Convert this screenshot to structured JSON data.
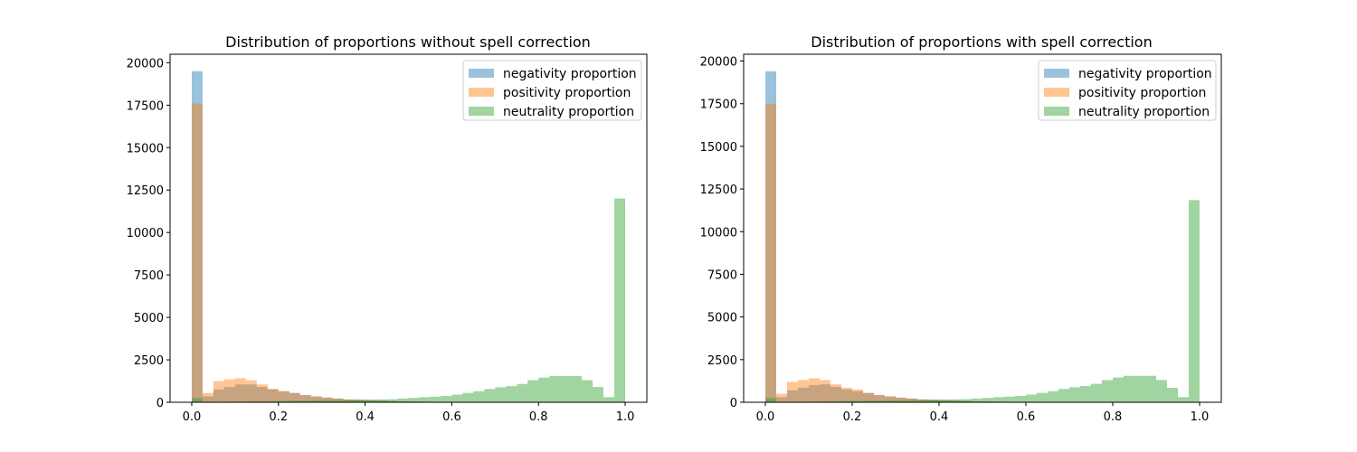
{
  "chart_data": [
    {
      "type": "histogram",
      "title": "Distribution of proportions without spell correction",
      "xlabel": "",
      "ylabel": "",
      "xlim": [
        -0.05,
        1.05
      ],
      "ylim": [
        0,
        20500
      ],
      "xticks": [
        "0.0",
        "0.2",
        "0.4",
        "0.6",
        "0.8",
        "1.0"
      ],
      "yticks": [
        "0",
        "2500",
        "5000",
        "7500",
        "10000",
        "12500",
        "15000",
        "17500",
        "20000"
      ],
      "bins": 40,
      "bin_range": [
        0,
        1
      ],
      "legend_position": "top-right",
      "series": [
        {
          "name": "negativity proportion",
          "color": "#1f77b4",
          "values": [
            19500,
            350,
            750,
            900,
            1050,
            1050,
            900,
            750,
            650,
            550,
            420,
            340,
            270,
            220,
            170,
            150,
            120,
            100,
            80,
            60,
            50,
            40,
            30,
            20,
            15,
            10,
            8,
            5,
            4,
            3,
            2,
            1,
            1,
            0,
            0,
            0,
            0,
            0,
            0,
            0
          ]
        },
        {
          "name": "positivity proportion",
          "color": "#ff7f0e",
          "values": [
            17600,
            550,
            1250,
            1350,
            1420,
            1300,
            1050,
            800,
            650,
            550,
            420,
            350,
            280,
            220,
            160,
            150,
            120,
            100,
            80,
            60,
            50,
            40,
            30,
            20,
            15,
            10,
            8,
            5,
            4,
            3,
            2,
            1,
            1,
            0,
            0,
            0,
            0,
            0,
            0,
            0
          ]
        },
        {
          "name": "neutrality proportion",
          "color": "#2ca02c",
          "values": [
            250,
            30,
            20,
            30,
            40,
            50,
            60,
            70,
            80,
            90,
            100,
            110,
            120,
            130,
            140,
            150,
            160,
            170,
            180,
            220,
            260,
            300,
            330,
            370,
            450,
            550,
            650,
            780,
            880,
            950,
            1080,
            1300,
            1450,
            1550,
            1550,
            1550,
            1300,
            900,
            300,
            12000
          ]
        }
      ]
    },
    {
      "type": "histogram",
      "title": "Distribution of proportions with spell correction",
      "xlabel": "",
      "ylabel": "",
      "xlim": [
        -0.05,
        1.05
      ],
      "ylim": [
        0,
        20400
      ],
      "xticks": [
        "0.0",
        "0.2",
        "0.4",
        "0.6",
        "0.8",
        "1.0"
      ],
      "yticks": [
        "0",
        "2500",
        "5000",
        "7500",
        "10000",
        "12500",
        "15000",
        "17500",
        "20000"
      ],
      "bins": 40,
      "bin_range": [
        0,
        1
      ],
      "legend_position": "top-right",
      "series": [
        {
          "name": "negativity proportion",
          "color": "#1f77b4",
          "values": [
            19400,
            300,
            700,
            850,
            1000,
            1050,
            900,
            750,
            650,
            540,
            420,
            340,
            270,
            220,
            170,
            150,
            120,
            100,
            80,
            60,
            50,
            40,
            30,
            20,
            15,
            10,
            8,
            5,
            4,
            3,
            2,
            1,
            1,
            0,
            0,
            0,
            0,
            0,
            0,
            0
          ]
        },
        {
          "name": "positivity proportion",
          "color": "#ff7f0e",
          "values": [
            17500,
            500,
            1200,
            1300,
            1400,
            1300,
            1050,
            850,
            750,
            550,
            430,
            350,
            280,
            220,
            160,
            150,
            120,
            100,
            80,
            60,
            50,
            40,
            30,
            20,
            15,
            10,
            8,
            5,
            4,
            3,
            2,
            1,
            1,
            0,
            0,
            0,
            0,
            0,
            0,
            0
          ]
        },
        {
          "name": "neutrality proportion",
          "color": "#2ca02c",
          "values": [
            250,
            30,
            20,
            30,
            40,
            50,
            60,
            70,
            80,
            90,
            100,
            110,
            120,
            130,
            140,
            150,
            160,
            170,
            180,
            220,
            260,
            300,
            330,
            370,
            450,
            550,
            650,
            780,
            880,
            950,
            1080,
            1300,
            1450,
            1550,
            1550,
            1550,
            1300,
            850,
            300,
            11850
          ]
        }
      ]
    }
  ]
}
